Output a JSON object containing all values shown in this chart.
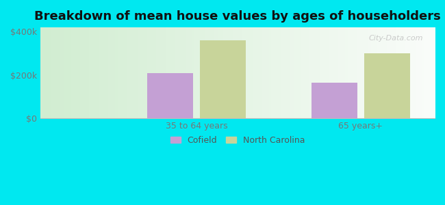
{
  "title": "Breakdown of mean house values by ages of householders",
  "categories": [
    "35 to 64 years",
    "65 years+"
  ],
  "cofield_values": [
    210000,
    165000
  ],
  "nc_values": [
    360000,
    300000
  ],
  "cofield_color": "#c4a0d4",
  "nc_color": "#c8d49a",
  "background_color": "#00e8f0",
  "plot_bg_gradient_left": "#d0ecd0",
  "plot_bg_gradient_right": "#f8fff8",
  "ylim": [
    0,
    420000
  ],
  "yticks": [
    0,
    200000,
    400000
  ],
  "ytick_labels": [
    "$0",
    "$200k",
    "$400k"
  ],
  "legend_cofield": "Cofield",
  "legend_nc": "North Carolina",
  "bar_width": 0.28,
  "title_fontsize": 13,
  "tick_fontsize": 9,
  "legend_fontsize": 9,
  "watermark": "City-Data.com"
}
